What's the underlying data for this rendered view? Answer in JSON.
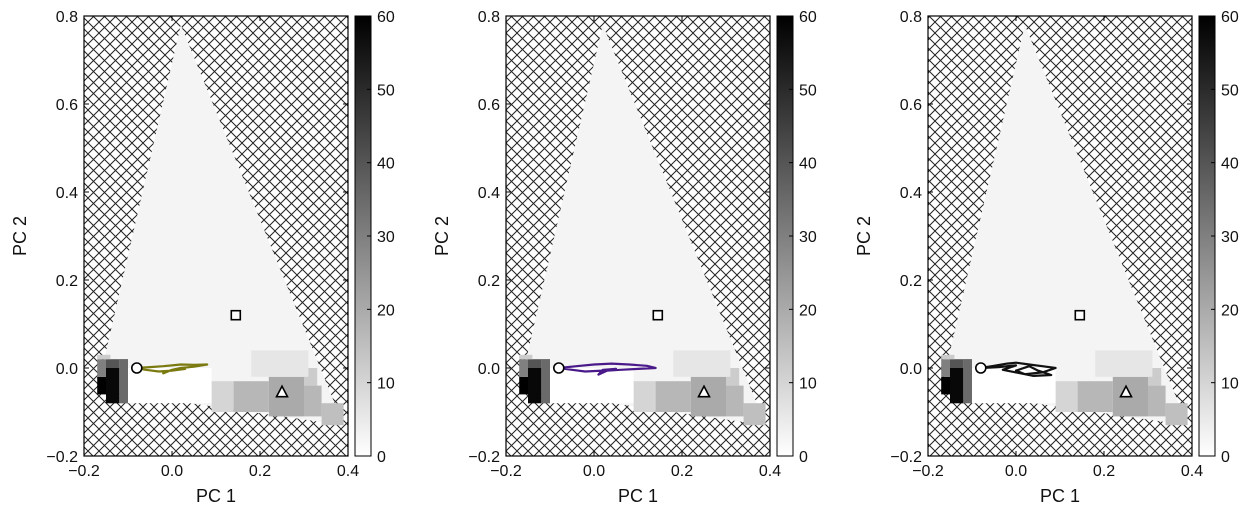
{
  "figure": {
    "colormap": "gray_r",
    "hatch_color": "#222222",
    "background_region": "hatched"
  },
  "chart_data": [
    {
      "type": "heatmap",
      "title": "",
      "xlabel": "PC 1",
      "ylabel": "PC 2",
      "xlim": [
        -0.2,
        0.4
      ],
      "ylim": [
        -0.2,
        0.8
      ],
      "xticks": [
        "−0.2",
        "0.0",
        "0.2",
        "0.4"
      ],
      "yticks": [
        "−0.2",
        "0.0",
        "0.2",
        "0.4",
        "0.6",
        "0.8"
      ],
      "colorbar": {
        "min": 0,
        "max": 60,
        "ticks": [
          "0",
          "10",
          "20",
          "30",
          "40",
          "50",
          "60"
        ]
      },
      "region_boundary": [
        [
          0.02,
          0.78
        ],
        [
          -0.17,
          -0.05
        ],
        [
          0.39,
          -0.13
        ]
      ],
      "markers": [
        {
          "shape": "circle",
          "x": -0.08,
          "y": 0.0
        },
        {
          "shape": "square",
          "x": 0.145,
          "y": 0.12
        },
        {
          "shape": "triangle",
          "x": 0.25,
          "y": -0.055
        }
      ],
      "trajectory": {
        "color": "#7a7a10",
        "points": [
          [
            -0.08,
            0.0
          ],
          [
            -0.05,
            0.002
          ],
          [
            -0.02,
            0.004
          ],
          [
            0.0,
            0.006
          ],
          [
            0.02,
            0.008
          ],
          [
            0.05,
            0.007
          ],
          [
            0.08,
            0.008
          ],
          [
            0.05,
            0.003
          ],
          [
            0.02,
            0.0
          ],
          [
            0.0,
            -0.004
          ],
          [
            -0.02,
            -0.012
          ],
          [
            0.0,
            -0.004
          ],
          [
            0.03,
            -0.002
          ],
          [
            0.0,
            -0.006
          ],
          [
            -0.03,
            -0.008
          ],
          [
            -0.06,
            -0.004
          ],
          [
            -0.08,
            0.0
          ]
        ]
      }
    },
    {
      "type": "heatmap",
      "title": "",
      "xlabel": "PC 1",
      "ylabel": "PC 2",
      "xlim": [
        -0.2,
        0.4
      ],
      "ylim": [
        -0.2,
        0.8
      ],
      "xticks": [
        "−0.2",
        "0.0",
        "0.2",
        "0.4"
      ],
      "yticks": [
        "−0.2",
        "0.0",
        "0.2",
        "0.4",
        "0.6",
        "0.8"
      ],
      "colorbar": {
        "min": 0,
        "max": 60,
        "ticks": [
          "0",
          "10",
          "20",
          "30",
          "40",
          "50",
          "60"
        ]
      },
      "region_boundary": [
        [
          0.02,
          0.78
        ],
        [
          -0.17,
          -0.05
        ],
        [
          0.39,
          -0.13
        ]
      ],
      "markers": [
        {
          "shape": "circle",
          "x": -0.08,
          "y": 0.0
        },
        {
          "shape": "square",
          "x": 0.145,
          "y": 0.12
        },
        {
          "shape": "triangle",
          "x": 0.25,
          "y": -0.055
        }
      ],
      "trajectory": {
        "color": "#4a1a8a",
        "points": [
          [
            -0.08,
            0.0
          ],
          [
            -0.04,
            0.004
          ],
          [
            0.0,
            0.008
          ],
          [
            0.04,
            0.01
          ],
          [
            0.08,
            0.008
          ],
          [
            0.12,
            0.005
          ],
          [
            0.14,
            0.0
          ],
          [
            0.1,
            -0.002
          ],
          [
            0.06,
            -0.004
          ],
          [
            0.03,
            -0.006
          ],
          [
            0.01,
            -0.015
          ],
          [
            0.02,
            -0.004
          ],
          [
            0.05,
            -0.002
          ],
          [
            0.02,
            -0.006
          ],
          [
            -0.02,
            -0.008
          ],
          [
            -0.05,
            -0.004
          ],
          [
            -0.08,
            0.0
          ]
        ]
      }
    },
    {
      "type": "heatmap",
      "title": "",
      "xlabel": "PC 1",
      "ylabel": "PC 2",
      "xlim": [
        -0.2,
        0.4
      ],
      "ylim": [
        -0.2,
        0.8
      ],
      "xticks": [
        "−0.2",
        "0.0",
        "0.2",
        "0.4"
      ],
      "yticks": [
        "−0.2",
        "0.0",
        "0.2",
        "0.4",
        "0.6",
        "0.8"
      ],
      "colorbar": {
        "min": 0,
        "max": 60,
        "ticks": [
          "0",
          "10",
          "20",
          "30",
          "40",
          "50",
          "60"
        ]
      },
      "region_boundary": [
        [
          0.02,
          0.78
        ],
        [
          -0.17,
          -0.05
        ],
        [
          0.39,
          -0.13
        ]
      ],
      "markers": [
        {
          "shape": "circle",
          "x": -0.08,
          "y": 0.0
        },
        {
          "shape": "square",
          "x": 0.145,
          "y": 0.12
        },
        {
          "shape": "triangle",
          "x": 0.25,
          "y": -0.055
        }
      ],
      "trajectory": {
        "color": "#111111",
        "points": [
          [
            -0.08,
            0.0
          ],
          [
            -0.05,
            0.005
          ],
          [
            -0.02,
            0.01
          ],
          [
            0.0,
            0.012
          ],
          [
            0.03,
            0.008
          ],
          [
            0.06,
            0.004
          ],
          [
            0.09,
            0.0
          ],
          [
            0.06,
            -0.01
          ],
          [
            0.02,
            -0.014
          ],
          [
            0.0,
            -0.006
          ],
          [
            0.03,
            0.004
          ],
          [
            0.05,
            -0.006
          ],
          [
            0.08,
            -0.016
          ],
          [
            0.04,
            -0.018
          ],
          [
            0.0,
            -0.01
          ],
          [
            -0.03,
            -0.004
          ],
          [
            0.0,
            0.006
          ],
          [
            -0.04,
            0.002
          ],
          [
            -0.08,
            0.0
          ]
        ]
      }
    }
  ]
}
